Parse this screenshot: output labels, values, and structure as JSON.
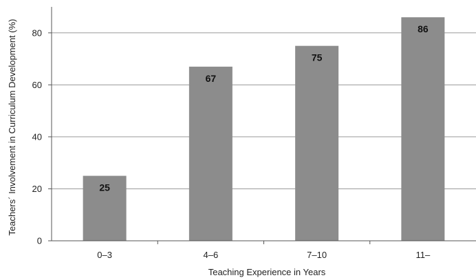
{
  "chart_data": {
    "type": "bar",
    "categories": [
      "0–3",
      "4–6",
      "7–10",
      "11–"
    ],
    "values": [
      25,
      67,
      75,
      86
    ],
    "data_labels": [
      "25",
      "67",
      "75",
      "86"
    ],
    "xlabel": "Teaching Experience in Years",
    "ylabel": "Teachers´ Involvement in Curriculum Development (%)",
    "ylim": [
      0,
      90
    ],
    "yticks": [
      0,
      20,
      40,
      60,
      80
    ],
    "ytick_labels": [
      "0",
      "20",
      "40",
      "60",
      "80"
    ],
    "grid": true,
    "legend": "none",
    "bar_color": "#8c8c8c",
    "grid_color": "#9a9a9a"
  }
}
